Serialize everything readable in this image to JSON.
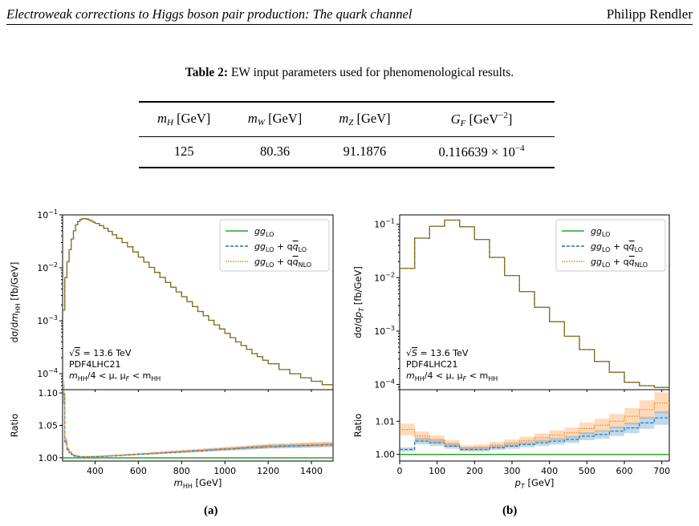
{
  "header": {
    "title": "Electroweak corrections to Higgs boson pair production: The quark channel",
    "author": "Philipp Rendler"
  },
  "table": {
    "caption_label": "Table 2:",
    "caption_text": " EW input parameters used for phenomenological results.",
    "headers": [
      {
        "sym": "m",
        "sub": "H",
        "unit": " [GeV]"
      },
      {
        "sym": "m",
        "sub": "W",
        "unit": " [GeV]"
      },
      {
        "sym": "m",
        "sub": "Z",
        "unit": " [GeV]"
      },
      {
        "sym": "G",
        "sub": "F",
        "unit": " [GeV",
        "sup": "−2",
        "close": "]"
      }
    ],
    "values": [
      "125",
      "80.36",
      "91.1876",
      "0.116639 × 10"
    ],
    "gf_exp": "−4"
  },
  "subfig_labels": [
    "(a)",
    "(b)"
  ],
  "colors": {
    "gg_lo": "#2ca02c",
    "qq_lo": "#1f77b4",
    "qq_nlo": "#ff7f0e",
    "main_line": "#8b6f1d"
  },
  "legend": [
    {
      "base": "gg",
      "sub": "LO",
      "plus": ""
    },
    {
      "base": "gg",
      "sub": "LO",
      "plus": " + q",
      "bar": "q",
      "sub2": "LO"
    },
    {
      "base": "gg",
      "sub": "LO",
      "plus": " + q",
      "bar": "q",
      "sub2": "NLO"
    }
  ],
  "annotations": {
    "sqrt_s": "= 13.6 TeV",
    "pdf": "PDF4LHC21",
    "scale": "/4 < μ, μ",
    "scale_f": " < m"
  },
  "chart_data": [
    {
      "type": "line",
      "panel": "a",
      "xlabel": "m_HH [GeV]",
      "ylabel": "dσ/dm_HH [fb/GeV]",
      "ratio_ylabel": "Ratio",
      "xlim": [
        250,
        1500
      ],
      "ylim": [
        5e-05,
        0.1
      ],
      "yscale": "log",
      "ratio_ylim": [
        0.995,
        1.105
      ],
      "xticks": [
        400,
        600,
        800,
        1000,
        1200,
        1400
      ],
      "yticks_labels": [
        "10⁻⁴",
        "10⁻³",
        "10⁻²",
        "10⁻¹"
      ],
      "ratio_yticks": [
        1.0,
        1.05,
        1.1
      ],
      "bin_edges": [
        250,
        260,
        270,
        280,
        290,
        300,
        310,
        320,
        330,
        340,
        350,
        360,
        370,
        380,
        390,
        400,
        420,
        440,
        460,
        480,
        500,
        525,
        550,
        575,
        600,
        625,
        650,
        675,
        700,
        725,
        750,
        775,
        800,
        825,
        850,
        875,
        900,
        925,
        950,
        975,
        1000,
        1025,
        1050,
        1075,
        1100,
        1125,
        1150,
        1175,
        1200,
        1250,
        1300,
        1350,
        1400,
        1450,
        1500
      ],
      "values": [
        0.0016,
        0.0065,
        0.013,
        0.022,
        0.035,
        0.05,
        0.065,
        0.075,
        0.082,
        0.085,
        0.085,
        0.083,
        0.08,
        0.077,
        0.073,
        0.069,
        0.063,
        0.056,
        0.049,
        0.042,
        0.036,
        0.03,
        0.025,
        0.02,
        0.016,
        0.0128,
        0.0102,
        0.0082,
        0.0066,
        0.0053,
        0.0043,
        0.0035,
        0.00285,
        0.0023,
        0.00185,
        0.0015,
        0.00124,
        0.00102,
        0.00084,
        0.0007,
        0.00058,
        0.00048,
        0.0004,
        0.00034,
        0.00029,
        0.00024,
        0.00021,
        0.00018,
        0.000155,
        0.00012,
        0.0001,
        8.4e-05,
        7.2e-05,
        6.2e-05
      ],
      "ratio_qq_lo": [
        1.098,
        1.025,
        1.013,
        1.008,
        1.005,
        1.003,
        1.002,
        1.0018,
        1.0016,
        1.0015,
        1.0015,
        1.0015,
        1.0016,
        1.0016,
        1.0017,
        1.0018,
        1.002,
        1.0024,
        1.0028,
        1.003,
        1.0035,
        1.004,
        1.0045,
        1.005,
        1.0055,
        1.006,
        1.0065,
        1.007,
        1.0075,
        1.008,
        1.0085,
        1.009,
        1.0095,
        1.01,
        1.0105,
        1.011,
        1.0115,
        1.012,
        1.0125,
        1.013,
        1.0135,
        1.014,
        1.0145,
        1.015,
        1.0155,
        1.016,
        1.0165,
        1.017,
        1.0175,
        1.018,
        1.0185,
        1.019,
        1.0195,
        1.02
      ],
      "ratio_qq_nlo": [
        1.1,
        1.027,
        1.014,
        1.009,
        1.006,
        1.004,
        1.003,
        1.0025,
        1.0022,
        1.002,
        1.002,
        1.002,
        1.002,
        1.0021,
        1.0022,
        1.0024,
        1.0026,
        1.003,
        1.0034,
        1.0038,
        1.0042,
        1.0047,
        1.0052,
        1.0057,
        1.0062,
        1.0067,
        1.0072,
        1.0077,
        1.0082,
        1.0087,
        1.0092,
        1.0097,
        1.0102,
        1.0107,
        1.0112,
        1.0117,
        1.0122,
        1.0127,
        1.0132,
        1.0137,
        1.0142,
        1.0147,
        1.0152,
        1.0157,
        1.0162,
        1.0167,
        1.0172,
        1.0177,
        1.0182,
        1.0187,
        1.0192,
        1.0197,
        1.0202,
        1.0207
      ]
    },
    {
      "type": "line",
      "panel": "b",
      "xlabel": "p_T [GeV]",
      "ylabel": "dσ/dp_T [fb/GeV]",
      "ratio_ylabel": "Ratio",
      "xlim": [
        0,
        720
      ],
      "ylim": [
        8e-05,
        0.15
      ],
      "yscale": "log",
      "ratio_ylim": [
        0.998,
        1.0195
      ],
      "xticks": [
        0,
        100,
        200,
        300,
        400,
        500,
        600,
        700
      ],
      "yticks_labels": [
        "10⁻⁴",
        "10⁻³",
        "10⁻²",
        "10⁻¹"
      ],
      "ratio_yticks": [
        1.0,
        1.01
      ],
      "bin_edges": [
        0,
        40,
        80,
        120,
        160,
        200,
        240,
        280,
        320,
        360,
        400,
        440,
        480,
        520,
        560,
        600,
        640,
        680,
        720
      ],
      "values": [
        0.015,
        0.055,
        0.092,
        0.12,
        0.09,
        0.052,
        0.024,
        0.011,
        0.0055,
        0.0028,
        0.0015,
        0.0008,
        0.00045,
        0.00027,
        0.00017,
        0.00011,
        9.5e-05,
        8.8e-05
      ],
      "ratio_qq_lo": [
        1.0015,
        1.004,
        1.0035,
        1.0025,
        1.0015,
        1.0015,
        1.002,
        1.0025,
        1.003,
        1.0035,
        1.004,
        1.0045,
        1.0055,
        1.006,
        1.007,
        1.008,
        1.0095,
        1.011
      ],
      "ratio_qq_nlo": [
        1.0075,
        1.0055,
        1.0045,
        1.0033,
        1.002,
        1.0022,
        1.0028,
        1.0035,
        1.0042,
        1.005,
        1.0058,
        1.0065,
        1.0078,
        1.0088,
        1.01,
        1.0115,
        1.0135,
        1.0155
      ]
    }
  ]
}
